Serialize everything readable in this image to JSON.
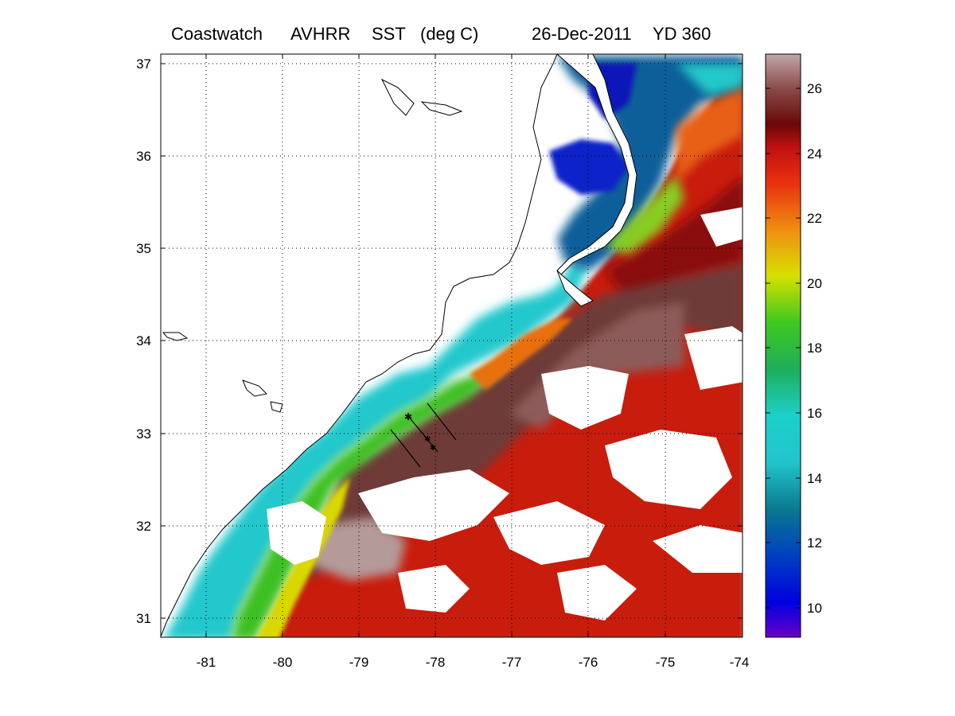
{
  "header": {
    "source": "Coastwatch",
    "sensor": "AVHRR",
    "variable": "SST",
    "unit": "(deg C)",
    "date": "26-Dec-2011",
    "yearday": "YD 360"
  },
  "map": {
    "lon_ticks": [
      "-81",
      "-80",
      "-79",
      "-78",
      "-77",
      "-76",
      "-75",
      "-74"
    ],
    "lat_ticks": [
      "37",
      "36",
      "35",
      "34",
      "33",
      "32",
      "31"
    ],
    "lon_range": [
      -81.6,
      -74
    ],
    "lat_range": [
      30.8,
      37.1
    ],
    "grid": "dotted",
    "colors": {
      "land": "#ffffff",
      "cloud": "#ffffff",
      "coastline": "#000000"
    }
  },
  "colorbar": {
    "ticks": [
      "26",
      "24",
      "22",
      "20",
      "18",
      "16",
      "14",
      "12",
      "10"
    ],
    "range": [
      9,
      27
    ],
    "colors": [
      "#6a00c8",
      "#0000e0",
      "#0040c0",
      "#0a7a8f",
      "#22c4cc",
      "#1bd0c8",
      "#1fae5a",
      "#3ec81e",
      "#d8e000",
      "#f08c10",
      "#e83010",
      "#c01010",
      "#6a0808",
      "#8a4a48",
      "#c0a6a6"
    ]
  }
}
